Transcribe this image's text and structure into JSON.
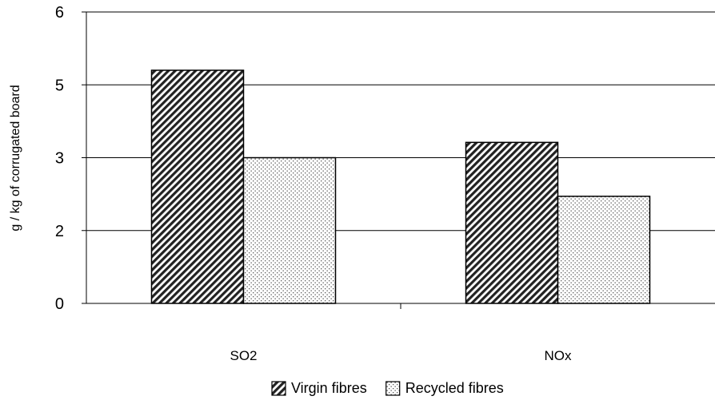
{
  "chart_data": {
    "type": "bar",
    "title": "",
    "xlabel": "",
    "ylabel": "g / kg of corrugated board",
    "categories": [
      "SO2",
      "NOx"
    ],
    "series": [
      {
        "name": "Virgin fibres",
        "values": [
          5.2,
          3.42
        ],
        "pattern": "diagonal-hatch"
      },
      {
        "name": "Recycled fibres",
        "values": [
          3.0,
          2.47
        ],
        "pattern": "dots"
      }
    ],
    "yticks": [
      {
        "value": 0,
        "label": "0"
      },
      {
        "value": 2,
        "label": "2"
      },
      {
        "value": 3,
        "label": "3"
      },
      {
        "value": 5,
        "label": "5"
      },
      {
        "value": 6,
        "label": "6"
      }
    ],
    "ylim": [
      0,
      6
    ],
    "grid": true,
    "legend": "bottom",
    "colors": {
      "bar_edge": "#000000",
      "grid": "#000000",
      "background": "#ffffff"
    }
  }
}
